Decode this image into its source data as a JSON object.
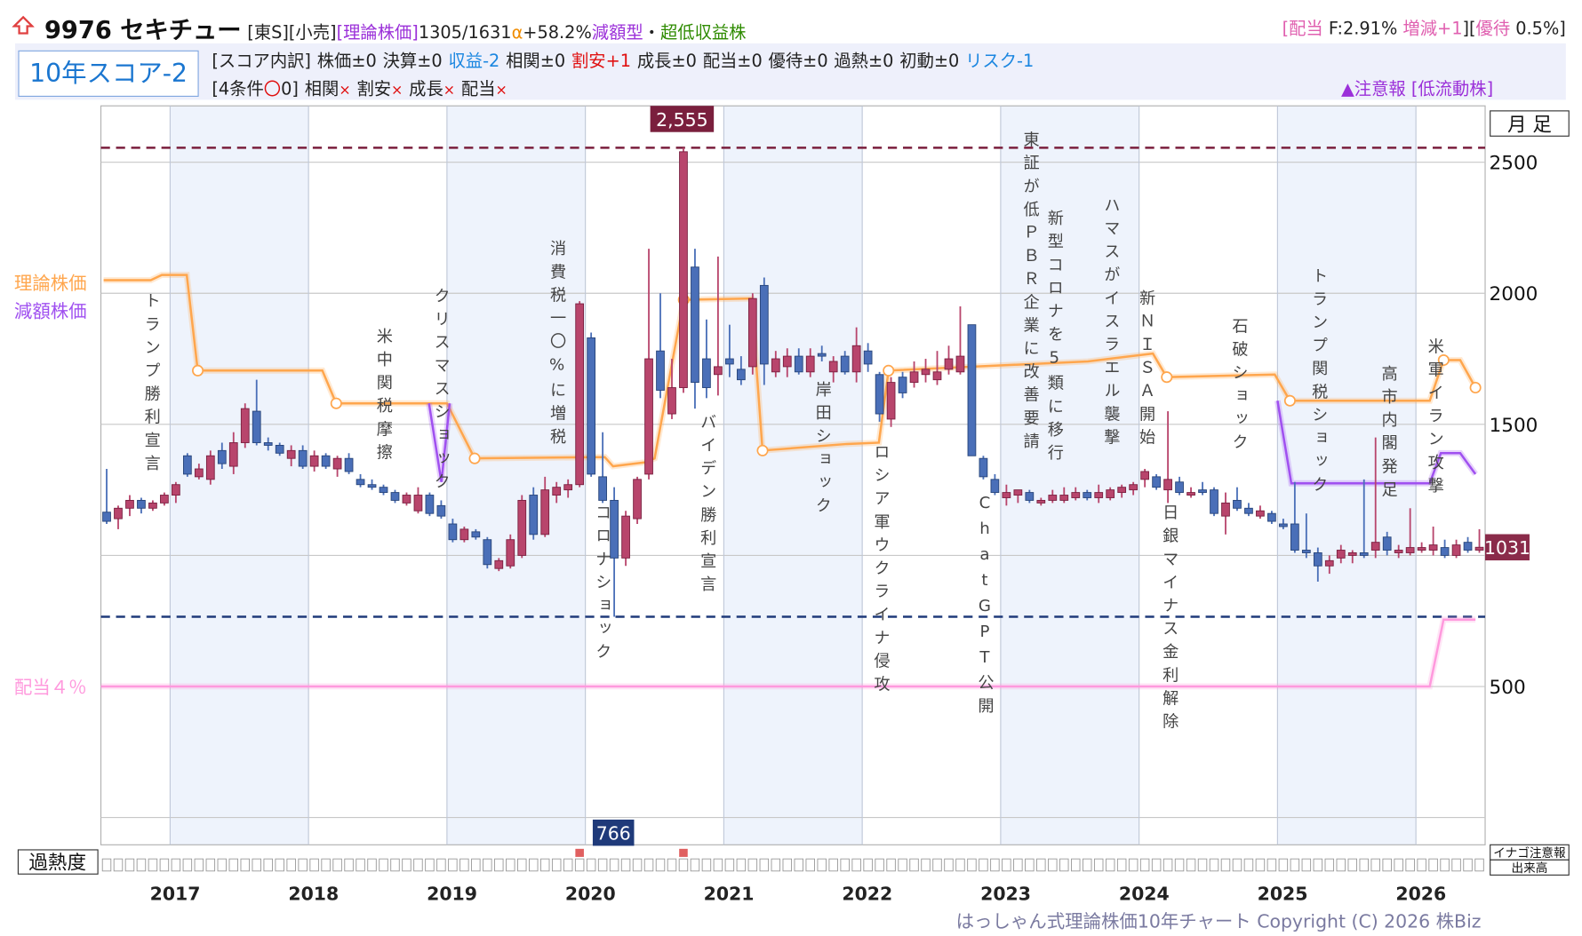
{
  "header": {
    "left": [
      {
        "text": "9976 セキチュー",
        "color": "#111111",
        "bold": true
      },
      {
        "text": "[東S][小売]",
        "color": "#222222"
      },
      {
        "text": "[理論株価]",
        "color": "#9b30d9"
      },
      {
        "text": "1305/1631",
        "color": "#222222"
      },
      {
        "text": "α",
        "color": "#f08c00"
      },
      {
        "text": "+58.2%",
        "color": "#222222"
      },
      {
        "text": "減額型",
        "color": "#9b30d9"
      },
      {
        "text": "・",
        "color": "#222222"
      },
      {
        "text": "超低収益株",
        "color": "#2e8b00"
      }
    ],
    "right": [
      {
        "text": "[配当",
        "color": "#e060b0"
      },
      {
        "text": " F:2.91% ",
        "color": "#222222"
      },
      {
        "text": "増減+1",
        "color": "#e060b0"
      },
      {
        "text": "][",
        "color": "#222222"
      },
      {
        "text": "優待",
        "color": "#e060b0"
      },
      {
        "text": " 0.5%]",
        "color": "#222222"
      }
    ]
  },
  "score": {
    "box": "10年スコア-2",
    "breakdown_label": "[スコア内訳]",
    "items": [
      {
        "text": "株価±0",
        "color": "#222222"
      },
      {
        "text": "決算±0",
        "color": "#222222"
      },
      {
        "text": "収益-2",
        "color": "#1a86e0"
      },
      {
        "text": "相関±0",
        "color": "#222222"
      },
      {
        "text": "割安+1",
        "color": "#e01010"
      },
      {
        "text": "成長±0",
        "color": "#222222"
      },
      {
        "text": "配当±0",
        "color": "#222222"
      },
      {
        "text": "優待±0",
        "color": "#222222"
      },
      {
        "text": "過熱±0",
        "color": "#222222"
      },
      {
        "text": "初動±0",
        "color": "#222222"
      },
      {
        "text": "リスク-1",
        "color": "#1a86e0"
      }
    ],
    "conditions_label_pre": "[4条件",
    "conditions_circle": "〇",
    "conditions_label_post": "0]",
    "conditions": [
      "相関",
      "割安",
      "成長",
      "配当"
    ],
    "cross": "×",
    "warning": "▲注意報",
    "liquidity": "[低流動株]"
  },
  "chart_data": {
    "type": "candlestick",
    "xlim": [
      2016.5,
      2026.5
    ],
    "xticks": [
      2017,
      2018,
      2019,
      2020,
      2021,
      2022,
      2023,
      2024,
      2025,
      2026
    ],
    "ylim": [
      -104,
      2715
    ],
    "yticks": [
      500,
      1500,
      2000,
      2500
    ],
    "ygrid": [
      0,
      500,
      1000,
      1500,
      2000,
      2500
    ],
    "up_color": "#b8456c",
    "down_color": "#4a6fb8",
    "candles": [
      [
        1165,
        1330,
        1120,
        1130
      ],
      [
        1140,
        1190,
        1100,
        1180
      ],
      [
        1180,
        1230,
        1150,
        1210
      ],
      [
        1210,
        1220,
        1160,
        1180
      ],
      [
        1180,
        1210,
        1170,
        1200
      ],
      [
        1200,
        1240,
        1190,
        1230
      ],
      [
        1230,
        1280,
        1200,
        1270
      ],
      [
        1380,
        1390,
        1300,
        1310
      ],
      [
        1300,
        1350,
        1290,
        1330
      ],
      [
        1290,
        1400,
        1270,
        1380
      ],
      [
        1400,
        1430,
        1330,
        1350
      ],
      [
        1340,
        1470,
        1310,
        1430
      ],
      [
        1430,
        1580,
        1410,
        1560
      ],
      [
        1550,
        1670,
        1420,
        1430
      ],
      [
        1430,
        1450,
        1400,
        1420
      ],
      [
        1420,
        1430,
        1380,
        1390
      ],
      [
        1370,
        1420,
        1340,
        1400
      ],
      [
        1400,
        1420,
        1330,
        1340
      ],
      [
        1340,
        1400,
        1320,
        1380
      ],
      [
        1380,
        1390,
        1330,
        1340
      ],
      [
        1330,
        1380,
        1300,
        1370
      ],
      [
        1370,
        1390,
        1310,
        1320
      ],
      [
        1290,
        1310,
        1260,
        1270
      ],
      [
        1270,
        1290,
        1250,
        1260
      ],
      [
        1260,
        1270,
        1230,
        1240
      ],
      [
        1240,
        1250,
        1200,
        1210
      ],
      [
        1200,
        1240,
        1190,
        1230
      ],
      [
        1170,
        1260,
        1160,
        1230
      ],
      [
        1230,
        1240,
        1150,
        1160
      ],
      [
        1190,
        1210,
        1140,
        1150
      ],
      [
        1120,
        1140,
        1050,
        1060
      ],
      [
        1060,
        1110,
        1050,
        1100
      ],
      [
        1090,
        1100,
        1060,
        1070
      ],
      [
        1060,
        1070,
        950,
        965
      ],
      [
        950,
        990,
        940,
        980
      ],
      [
        960,
        1080,
        950,
        1060
      ],
      [
        1000,
        1230,
        990,
        1210
      ],
      [
        1230,
        1260,
        1060,
        1080
      ],
      [
        1080,
        1300,
        1070,
        1250
      ],
      [
        1230,
        1280,
        1200,
        1260
      ],
      [
        1250,
        1290,
        1220,
        1270
      ],
      [
        1270,
        1970,
        1260,
        1960
      ],
      [
        1830,
        1850,
        1300,
        1310
      ],
      [
        1300,
        1470,
        1200,
        1210
      ],
      [
        1210,
        1260,
        766,
        990
      ],
      [
        990,
        1170,
        960,
        1150
      ],
      [
        1140,
        1300,
        1120,
        1290
      ],
      [
        1310,
        2170,
        1290,
        1750
      ],
      [
        1780,
        2000,
        1600,
        1630
      ],
      [
        1540,
        1750,
        1520,
        1640
      ],
      [
        1640,
        2555,
        1620,
        2540
      ],
      [
        2100,
        2170,
        1560,
        1660
      ],
      [
        1750,
        1900,
        1600,
        1640
      ],
      [
        1690,
        2140,
        1610,
        1720
      ],
      [
        1750,
        1880,
        1680,
        1730
      ],
      [
        1710,
        1760,
        1650,
        1670
      ],
      [
        1720,
        2000,
        1690,
        1980
      ],
      [
        2030,
        2060,
        1650,
        1730
      ],
      [
        1700,
        1780,
        1680,
        1750
      ],
      [
        1720,
        1790,
        1680,
        1760
      ],
      [
        1760,
        1790,
        1690,
        1700
      ],
      [
        1700,
        1790,
        1680,
        1760
      ],
      [
        1770,
        1800,
        1740,
        1760
      ],
      [
        1700,
        1760,
        1660,
        1740
      ],
      [
        1760,
        1780,
        1690,
        1700
      ],
      [
        1700,
        1870,
        1660,
        1800
      ],
      [
        1780,
        1810,
        1700,
        1730
      ],
      [
        1690,
        1700,
        1510,
        1540
      ],
      [
        1520,
        1680,
        1490,
        1660
      ],
      [
        1680,
        1700,
        1600,
        1620
      ],
      [
        1660,
        1740,
        1640,
        1700
      ],
      [
        1690,
        1750,
        1660,
        1710
      ],
      [
        1670,
        1780,
        1650,
        1700
      ],
      [
        1710,
        1800,
        1690,
        1750
      ],
      [
        1700,
        1950,
        1690,
        1760
      ],
      [
        1880,
        1880,
        1380,
        1380
      ],
      [
        1370,
        1380,
        1290,
        1300
      ],
      [
        1290,
        1310,
        1230,
        1240
      ],
      [
        1220,
        1270,
        1190,
        1240
      ],
      [
        1230,
        1250,
        1200,
        1250
      ],
      [
        1240,
        1250,
        1200,
        1210
      ],
      [
        1200,
        1220,
        1190,
        1210
      ],
      [
        1210,
        1250,
        1200,
        1230
      ],
      [
        1210,
        1260,
        1200,
        1230
      ],
      [
        1220,
        1260,
        1210,
        1240
      ],
      [
        1240,
        1250,
        1210,
        1220
      ],
      [
        1220,
        1270,
        1200,
        1240
      ],
      [
        1220,
        1260,
        1210,
        1250
      ],
      [
        1240,
        1270,
        1220,
        1260
      ],
      [
        1250,
        1280,
        1230,
        1270
      ],
      [
        1290,
        1330,
        1260,
        1320
      ],
      [
        1300,
        1310,
        1250,
        1260
      ],
      [
        1250,
        1550,
        1200,
        1290
      ],
      [
        1280,
        1300,
        1230,
        1240
      ],
      [
        1230,
        1260,
        1220,
        1240
      ],
      [
        1250,
        1280,
        1230,
        1240
      ],
      [
        1250,
        1260,
        1150,
        1160
      ],
      [
        1150,
        1240,
        1080,
        1200
      ],
      [
        1210,
        1260,
        1170,
        1180
      ],
      [
        1180,
        1200,
        1150,
        1160
      ],
      [
        1150,
        1190,
        1140,
        1170
      ],
      [
        1160,
        1170,
        1120,
        1130
      ],
      [
        1120,
        1140,
        1100,
        1110
      ],
      [
        1120,
        1280,
        1010,
        1020
      ],
      [
        1020,
        1160,
        990,
        1010
      ],
      [
        1010,
        1030,
        900,
        960
      ],
      [
        960,
        1000,
        930,
        980
      ],
      [
        990,
        1040,
        970,
        1020
      ],
      [
        1000,
        1020,
        970,
        1010
      ],
      [
        1010,
        1290,
        990,
        1000
      ],
      [
        1020,
        1450,
        990,
        1050
      ],
      [
        1070,
        1090,
        1000,
        1020
      ],
      [
        1010,
        1040,
        990,
        1020
      ],
      [
        1010,
        1180,
        1000,
        1030
      ],
      [
        1020,
        1050,
        1010,
        1030
      ],
      [
        1020,
        1110,
        1000,
        1040
      ],
      [
        1030,
        1060,
        990,
        1000
      ],
      [
        1000,
        1060,
        990,
        1040
      ],
      [
        1050,
        1070,
        1010,
        1020
      ],
      [
        1020,
        1100,
        1010,
        1031
      ]
    ],
    "series": [
      {
        "name": "理論株価",
        "color": "#ffa64d",
        "x": [
          2016.52,
          2016.86,
          2016.94,
          2017.12,
          2017.2,
          2018.1,
          2018.2,
          2018.9,
          2019.0,
          2019.2,
          2020.14,
          2020.2,
          2020.43,
          2020.5,
          2020.71,
          2021.2,
          2021.28,
          2021.89,
          2022.12,
          2022.19,
          2023.63,
          2024.1,
          2024.2,
          2024.98,
          2025.09,
          2026.1,
          2026.2,
          2026.32,
          2026.43
        ],
        "values": [
          2050,
          2050,
          2070,
          2070,
          1705,
          1705,
          1580,
          1580,
          1580,
          1370,
          1375,
          1340,
          1355,
          1370,
          1975,
          1980,
          1400,
          1425,
          1430,
          1705,
          1740,
          1770,
          1680,
          1690,
          1590,
          1590,
          1745,
          1745,
          1640
        ]
      },
      {
        "name": "減額株価",
        "color": "#a050f0",
        "x": [
          2018.87,
          2018.96,
          2019.02,
          null,
          2025.0,
          2025.1,
          2026.1,
          2026.18,
          2026.32,
          2026.43
        ],
        "values": [
          1580,
          1280,
          1580,
          null,
          1590,
          1275,
          1275,
          1390,
          1390,
          1310
        ]
      },
      {
        "name": "配当４％",
        "color": "#ff99dd",
        "x": [
          2016.5,
          2026.1,
          2026.2,
          2026.43
        ],
        "values": [
          500,
          500,
          755,
          755
        ]
      }
    ],
    "reference_lines": [
      {
        "value": 2555,
        "label": "2,555",
        "color": "#7a1f3d"
      },
      {
        "value": 766,
        "label": "766",
        "color": "#1f3a7a"
      }
    ],
    "last_price": 1031,
    "events": [
      "トランプ勝利宣言",
      "米中関税摩擦",
      "クリスマスショック",
      "消費税一〇%に増税",
      "コロナショック",
      "バイデン勝利宣言",
      "岸田ショック",
      "ロシア軍ウクライナ侵攻",
      "ChatGPT公開",
      "東証が低ＰＢＲ企業に改善要請",
      "新型コロナを5類に移行",
      "ハマスがイスラエル襲撃",
      "新ＮＩＳＡ開始",
      "日銀マイナス金利解除",
      "石破ショック",
      "トランプ関税ショック",
      "高市内閣発足",
      "米軍イラン攻撃"
    ],
    "period_label": "月 足",
    "overheat_label": "過熱度",
    "inago_label": "イナゴ注意報",
    "volume_label": "出来高"
  },
  "footer": {
    "copyright": "はっしゃん式理論株価10年チャート Copyright (C) 2026 株Biz"
  }
}
